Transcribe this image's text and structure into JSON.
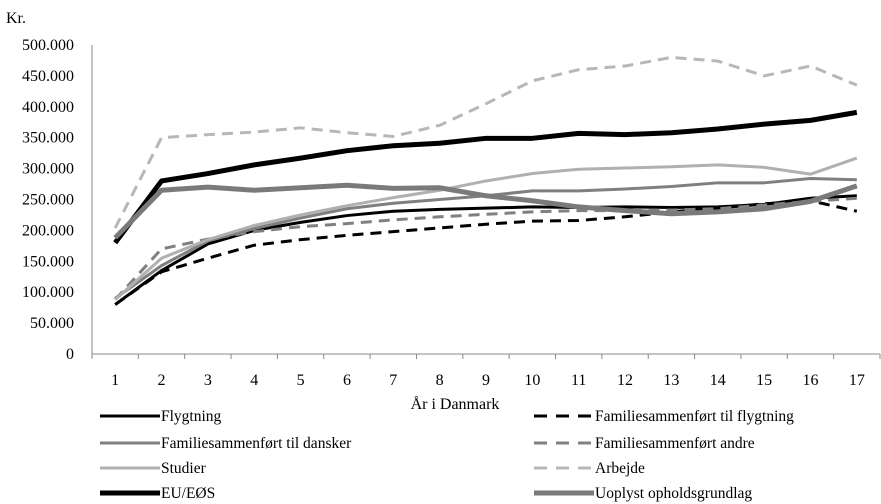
{
  "chart_data": {
    "type": "line",
    "xlabel": "År i Danmark",
    "ylabel": "Kr.",
    "categories": [
      "1",
      "2",
      "3",
      "4",
      "5",
      "6",
      "7",
      "8",
      "9",
      "10",
      "11",
      "12",
      "13",
      "14",
      "15",
      "16",
      "17"
    ],
    "yticks": [
      "0",
      "50.000",
      "100.000",
      "150.000",
      "200.000",
      "250.000",
      "300.000",
      "350.000",
      "400.000",
      "450.000",
      "500.000"
    ],
    "ylim": [
      0,
      500000
    ],
    "grid": false,
    "legend_position": "bottom",
    "series": [
      {
        "name": "Flygtning",
        "color": "#000000",
        "style": "solid",
        "width": 3,
        "values": [
          80000,
          135000,
          178000,
          200000,
          213000,
          224000,
          231000,
          234000,
          236000,
          238000,
          237000,
          238000,
          237000,
          238000,
          242000,
          252000,
          256000
        ]
      },
      {
        "name": "Familiesammenført til flygtning",
        "color": "#000000",
        "style": "dashed",
        "width": 3,
        "values": [
          80000,
          133000,
          155000,
          176000,
          185000,
          192000,
          198000,
          204000,
          210000,
          215000,
          216000,
          222000,
          230000,
          236000,
          243000,
          248000,
          231000
        ]
      },
      {
        "name": "Familiesammenført til dansker",
        "color": "#7f7f7f",
        "style": "solid",
        "width": 3,
        "values": [
          90000,
          143000,
          183000,
          203000,
          220000,
          235000,
          244000,
          250000,
          256000,
          264000,
          264000,
          267000,
          271000,
          277000,
          277000,
          284000,
          282000
        ]
      },
      {
        "name": "Familiesammenført andre",
        "color": "#808080",
        "style": "dashed",
        "width": 3,
        "values": [
          88000,
          170000,
          186000,
          198000,
          206000,
          211000,
          217000,
          222000,
          226000,
          230000,
          232000,
          232000,
          233000,
          235000,
          241000,
          247000,
          252000
        ]
      },
      {
        "name": "Studier",
        "color": "#b0b0b0",
        "style": "solid",
        "width": 3,
        "values": [
          88000,
          155000,
          185000,
          208000,
          225000,
          240000,
          253000,
          265000,
          280000,
          292000,
          299000,
          301000,
          303000,
          306000,
          302000,
          291000,
          317000
        ]
      },
      {
        "name": "Arbejde",
        "color": "#b7b7b7",
        "style": "dashed",
        "width": 3,
        "values": [
          204000,
          350000,
          355000,
          359000,
          366000,
          358000,
          352000,
          370000,
          405000,
          442000,
          460000,
          466000,
          480000,
          474000,
          450000,
          466000,
          435000
        ]
      },
      {
        "name": "EU/EØS",
        "color": "#000000",
        "style": "solid",
        "width": 5,
        "values": [
          180000,
          280000,
          292000,
          306000,
          317000,
          329000,
          337000,
          341000,
          349000,
          349000,
          357000,
          355000,
          358000,
          364000,
          372000,
          378000,
          391000
        ]
      },
      {
        "name": "Uoplyst opholdsgrundlag",
        "color": "#7a7a7a",
        "style": "solid",
        "width": 5,
        "values": [
          188000,
          265000,
          270000,
          265000,
          269000,
          273000,
          268000,
          269000,
          256000,
          248000,
          238000,
          232000,
          227000,
          230000,
          235000,
          247000,
          272000
        ]
      }
    ]
  }
}
